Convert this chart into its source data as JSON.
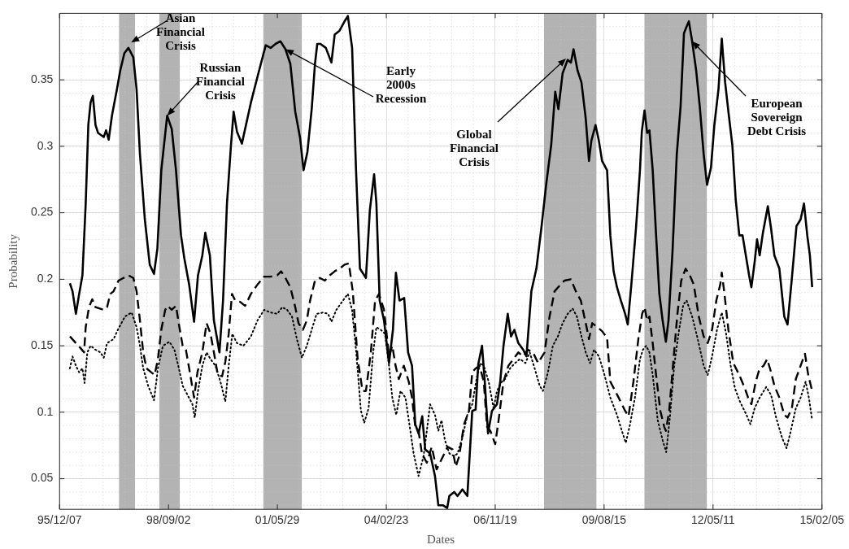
{
  "chart_data": {
    "type": "line",
    "xlabel": "Dates",
    "ylabel": "Probability",
    "grid": true,
    "xlim": [
      "1995-12-07",
      "2015-02-05"
    ],
    "xticks": [
      {
        "value": "1995-12-07",
        "label": "95/12/07"
      },
      {
        "value": "1998-09-02",
        "label": "98/09/02"
      },
      {
        "value": "2001-05-29",
        "label": "01/05/29"
      },
      {
        "value": "2004-02-23",
        "label": "04/02/23"
      },
      {
        "value": "2006-11-19",
        "label": "06/11/19"
      },
      {
        "value": "2009-08-15",
        "label": "09/08/15"
      },
      {
        "value": "2012-05-11",
        "label": "12/05/11"
      },
      {
        "value": "2015-02-05",
        "label": "15/02/05"
      }
    ],
    "ylim": [
      0.027,
      0.4
    ],
    "yticks": [
      0.05,
      0.1,
      0.15,
      0.2,
      0.25,
      0.3,
      0.35
    ],
    "bands": [
      {
        "axis": "x",
        "from": "1997-06-05",
        "to": "1997-10-30",
        "color": "#b3b3b3"
      },
      {
        "axis": "x",
        "from": "1998-06-10",
        "to": "1998-12-15",
        "color": "#b3b3b3"
      },
      {
        "axis": "x",
        "from": "2001-01-20",
        "to": "2002-01-08",
        "color": "#b3b3b3"
      },
      {
        "axis": "x",
        "from": "2008-02-10",
        "to": "2009-06-05",
        "color": "#b3b3b3"
      },
      {
        "axis": "x",
        "from": "2010-08-20",
        "to": "2012-03-15",
        "color": "#b3b3b3"
      }
    ],
    "annotations": [
      {
        "text": "Asian\nFinancial\nCrisis",
        "x": "1997-09-24",
        "y": 0.378
      },
      {
        "text": "Russian\nFinancial\nCrisis",
        "x": "1998-08-21",
        "y": 0.323
      },
      {
        "text": "Early\n2000s\nRecession",
        "x": "2001-08-11",
        "y": 0.373
      },
      {
        "text": "Global\nFinancial\nCrisis",
        "x": "2008-08-30",
        "y": 0.366
      },
      {
        "text": "European\nSovereign\nDebt Crisis",
        "x": "2011-11-01",
        "y": 0.379
      }
    ],
    "series": [
      {
        "line_style": "solid",
        "color": "#000000",
        "x": [
          "1996-03-11",
          "1996-04-04",
          "1996-05-05",
          "1996-06-04",
          "1996-07-04",
          "1996-08-03",
          "1996-08-27",
          "1996-09-17",
          "1996-10-08",
          "1996-11-01",
          "1996-11-25",
          "1997-01-16",
          "1997-02-06",
          "1997-03-02",
          "1997-04-01",
          "1997-05-17",
          "1997-06-16",
          "1997-07-24",
          "1997-08-30",
          "1997-10-14",
          "1997-11-13",
          "1997-12-14",
          "1998-01-28",
          "1998-03-14",
          "1998-04-22",
          "1998-05-23",
          "1998-06-28",
          "1998-08-21",
          "1998-10-02",
          "1998-11-10",
          "1998-12-26",
          "1999-01-25",
          "1999-03-11",
          "1999-04-25",
          "1999-05-31",
          "1999-07-10",
          "1999-08-06",
          "1999-09-17",
          "1999-10-24",
          "1999-12-14",
          "2000-01-16",
          "2000-02-21",
          "2000-03-29",
          "2000-04-22",
          "2000-05-23",
          "2000-07-07",
          "2000-09-28",
          "2000-12-12",
          "2001-02-11",
          "2001-03-28",
          "2001-05-12",
          "2001-06-26",
          "2001-08-11",
          "2001-09-25",
          "2001-11-09",
          "2001-12-24",
          "2002-01-24",
          "2002-03-01",
          "2002-04-09",
          "2002-05-09",
          "2002-05-30",
          "2002-06-29",
          "2002-08-17",
          "2002-10-07",
          "2002-11-06",
          "2002-12-21",
          "2003-02-05",
          "2003-03-07",
          "2003-04-15",
          "2003-05-21",
          "2003-06-26",
          "2003-08-20",
          "2003-09-25",
          "2003-11-03",
          "2003-11-24",
          "2003-12-24",
          "2004-02-02",
          "2004-03-19",
          "2004-04-24",
          "2004-05-21",
          "2004-06-23",
          "2004-08-05",
          "2004-09-10",
          "2004-10-16",
          "2004-11-15",
          "2004-12-15",
          "2005-01-18",
          "2005-02-14",
          "2005-03-31",
          "2005-05-15",
          "2005-06-15",
          "2005-07-29",
          "2005-09-04",
          "2005-09-24",
          "2005-11-07",
          "2005-12-08",
          "2006-01-22",
          "2006-03-08",
          "2006-04-22",
          "2006-05-23",
          "2006-06-16",
          "2006-07-21",
          "2006-08-15",
          "2006-09-14",
          "2006-10-20",
          "2006-12-05",
          "2007-01-04",
          "2007-02-03",
          "2007-03-14",
          "2007-04-13",
          "2007-05-14",
          "2007-06-19",
          "2007-08-03",
          "2007-09-02",
          "2007-10-17",
          "2007-12-02",
          "2008-01-16",
          "2008-03-02",
          "2008-04-16",
          "2008-05-23",
          "2008-06-21",
          "2008-07-30",
          "2008-09-14",
          "2008-10-14",
          "2008-11-07",
          "2008-12-14",
          "2009-01-19",
          "2009-02-27",
          "2009-03-29",
          "2009-04-19",
          "2009-05-28",
          "2009-06-28",
          "2009-07-27",
          "2009-09-11",
          "2009-10-11",
          "2009-11-10",
          "2009-12-11",
          "2010-01-16",
          "2010-02-24",
          "2010-03-20",
          "2010-04-25",
          "2010-06-03",
          "2010-07-10",
          "2010-07-27",
          "2010-08-21",
          "2010-09-14",
          "2010-10-05",
          "2010-11-04",
          "2010-12-05",
          "2011-01-04",
          "2011-02-03",
          "2011-03-05",
          "2011-03-29",
          "2011-05-05",
          "2011-06-13",
          "2011-07-18",
          "2011-08-18",
          "2011-09-11",
          "2011-10-02",
          "2011-11-01",
          "2011-12-08",
          "2012-01-10",
          "2012-02-15",
          "2012-03-17",
          "2012-04-22",
          "2012-05-23",
          "2012-06-30",
          "2012-07-30",
          "2012-08-30",
          "2012-09-29",
          "2012-11-04",
          "2012-12-05",
          "2013-01-07",
          "2013-02-06",
          "2013-03-08",
          "2013-04-07",
          "2013-04-28",
          "2013-05-28",
          "2013-06-19",
          "2013-07-13",
          "2013-08-12",
          "2013-09-26",
          "2013-10-26",
          "2013-11-25",
          "2014-01-10",
          "2014-02-24",
          "2014-03-26",
          "2014-05-05",
          "2014-06-16",
          "2014-07-24",
          "2014-08-24",
          "2014-09-23",
          "2014-10-17",
          "2014-11-07"
        ],
        "values": [
          0.197,
          0.191,
          0.174,
          0.189,
          0.203,
          0.257,
          0.316,
          0.333,
          0.338,
          0.316,
          0.31,
          0.307,
          0.312,
          0.305,
          0.323,
          0.343,
          0.357,
          0.37,
          0.374,
          0.367,
          0.343,
          0.294,
          0.245,
          0.211,
          0.204,
          0.223,
          0.282,
          0.323,
          0.313,
          0.282,
          0.233,
          0.216,
          0.196,
          0.168,
          0.203,
          0.218,
          0.235,
          0.218,
          0.169,
          0.145,
          0.184,
          0.257,
          0.301,
          0.326,
          0.311,
          0.302,
          0.333,
          0.357,
          0.376,
          0.374,
          0.377,
          0.379,
          0.373,
          0.362,
          0.326,
          0.306,
          0.282,
          0.296,
          0.328,
          0.362,
          0.377,
          0.377,
          0.374,
          0.363,
          0.384,
          0.387,
          0.394,
          0.398,
          0.374,
          0.282,
          0.208,
          0.201,
          0.252,
          0.279,
          0.257,
          0.184,
          0.169,
          0.137,
          0.162,
          0.205,
          0.184,
          0.186,
          0.145,
          0.135,
          0.091,
          0.084,
          0.097,
          0.072,
          0.069,
          0.052,
          0.03,
          0.03,
          0.028,
          0.037,
          0.04,
          0.037,
          0.042,
          0.037,
          0.101,
          0.102,
          0.136,
          0.15,
          0.123,
          0.084,
          0.101,
          0.106,
          0.123,
          0.15,
          0.174,
          0.157,
          0.162,
          0.152,
          0.147,
          0.142,
          0.191,
          0.208,
          0.238,
          0.272,
          0.301,
          0.341,
          0.328,
          0.355,
          0.365,
          0.363,
          0.373,
          0.357,
          0.348,
          0.321,
          0.289,
          0.304,
          0.316,
          0.304,
          0.289,
          0.282,
          0.233,
          0.206,
          0.194,
          0.184,
          0.174,
          0.166,
          0.199,
          0.238,
          0.282,
          0.311,
          0.327,
          0.31,
          0.312,
          0.282,
          0.233,
          0.189,
          0.169,
          0.153,
          0.169,
          0.221,
          0.294,
          0.33,
          0.385,
          0.39,
          0.394,
          0.379,
          0.357,
          0.33,
          0.294,
          0.271,
          0.284,
          0.316,
          0.343,
          0.381,
          0.348,
          0.326,
          0.301,
          0.26,
          0.233,
          0.233,
          0.218,
          0.203,
          0.194,
          0.213,
          0.23,
          0.218,
          0.235,
          0.255,
          0.238,
          0.218,
          0.208,
          0.172,
          0.166,
          0.201,
          0.24,
          0.245,
          0.257,
          0.233,
          0.218,
          0.194
        ]
      },
      {
        "line_style": "dashed",
        "color": "#000000",
        "x": [
          "1996-03-11",
          "1996-05-05",
          "1996-06-19",
          "1996-07-19",
          "1996-08-03",
          "1996-09-02",
          "1996-10-02",
          "1996-11-01",
          "1997-01-16",
          "1997-02-15",
          "1997-03-17",
          "1997-04-16",
          "1997-05-31",
          "1997-07-16",
          "1997-08-30",
          "1997-10-14",
          "1997-11-13",
          "1997-12-14",
          "1998-01-13",
          "1998-02-12",
          "1998-03-29",
          "1998-04-28",
          "1998-05-28",
          "1998-06-28",
          "1998-08-03",
          "1998-08-27",
          "1998-10-02",
          "1998-11-10",
          "1998-12-11",
          "1999-01-10",
          "1999-02-09",
          "1999-03-11",
          "1999-04-25",
          "1999-05-26",
          "1999-07-10",
          "1999-08-18",
          "1999-09-23",
          "1999-10-24",
          "1999-11-29",
          "2000-01-07",
          "2000-02-06",
          "2000-03-08",
          "2000-04-07",
          "2000-05-07",
          "2000-06-21",
          "2000-08-06",
          "2000-09-28",
          "2000-11-27",
          "2001-01-27",
          "2001-03-28",
          "2001-05-28",
          "2001-07-02",
          "2001-08-11",
          "2001-09-25",
          "2001-11-09",
          "2001-12-09",
          "2002-01-18",
          "2002-02-23",
          "2002-03-25",
          "2002-05-09",
          "2002-06-23",
          "2002-08-08",
          "2002-09-22",
          "2002-11-06",
          "2002-12-21",
          "2003-02-05",
          "2003-03-16",
          "2003-04-21",
          "2003-06-05",
          "2003-07-20",
          "2003-08-20",
          "2003-10-04",
          "2003-11-12",
          "2003-12-18",
          "2004-02-02",
          "2004-03-19",
          "2004-04-18",
          "2004-05-18",
          "2004-06-17",
          "2004-08-02",
          "2004-09-16",
          "2004-10-16",
          "2004-11-15",
          "2004-12-15",
          "2005-01-15",
          "2005-03-01",
          "2005-04-15",
          "2005-05-30",
          "2005-09-08",
          "2005-10-23",
          "2005-11-22",
          "2005-12-23",
          "2006-02-06",
          "2006-03-23",
          "2006-04-22",
          "2006-05-23",
          "2006-06-28",
          "2006-08-06",
          "2006-09-05",
          "2006-10-05",
          "2006-11-19",
          "2006-12-20",
          "2007-02-03",
          "2007-03-20",
          "2007-05-05",
          "2007-06-19",
          "2007-08-03",
          "2007-09-17",
          "2007-11-01",
          "2007-12-17",
          "2008-02-15",
          "2008-04-01",
          "2008-05-17",
          "2008-06-30",
          "2008-08-15",
          "2008-10-14",
          "2008-11-28",
          "2009-01-13",
          "2009-02-27",
          "2009-03-29",
          "2009-04-28",
          "2009-06-13",
          "2009-07-27",
          "2009-09-11",
          "2009-10-11",
          "2009-12-26",
          "2010-02-24",
          "2010-03-27",
          "2010-05-11",
          "2010-06-25",
          "2010-07-30",
          "2010-08-21",
          "2010-09-14",
          "2010-10-05",
          "2010-11-04",
          "2010-12-05",
          "2011-01-13",
          "2011-02-18",
          "2011-03-05",
          "2011-04-04",
          "2011-05-14",
          "2011-06-19",
          "2011-07-24",
          "2011-09-02",
          "2011-10-11",
          "2011-11-16",
          "2012-01-01",
          "2012-02-15",
          "2012-03-23",
          "2012-05-02",
          "2012-06-10",
          "2012-07-16",
          "2012-07-30",
          "2012-08-21",
          "2012-09-29",
          "2012-11-13",
          "2013-01-07",
          "2013-02-27",
          "2013-03-29",
          "2013-04-28",
          "2013-06-07",
          "2013-07-13",
          "2013-08-18",
          "2013-09-20",
          "2013-10-26",
          "2013-11-25",
          "2014-01-10",
          "2014-02-24",
          "2014-03-26",
          "2014-05-05",
          "2014-06-10",
          "2014-07-24",
          "2014-09-02",
          "2014-10-02",
          "2014-11-07"
        ],
        "values": [
          0.157,
          0.152,
          0.148,
          0.145,
          0.164,
          0.179,
          0.185,
          0.179,
          0.177,
          0.179,
          0.189,
          0.191,
          0.199,
          0.201,
          0.203,
          0.201,
          0.191,
          0.169,
          0.145,
          0.133,
          0.13,
          0.128,
          0.14,
          0.162,
          0.177,
          0.18,
          0.177,
          0.18,
          0.164,
          0.15,
          0.147,
          0.133,
          0.111,
          0.13,
          0.145,
          0.167,
          0.159,
          0.145,
          0.128,
          0.127,
          0.138,
          0.159,
          0.189,
          0.184,
          0.183,
          0.18,
          0.189,
          0.196,
          0.202,
          0.202,
          0.203,
          0.206,
          0.201,
          0.194,
          0.179,
          0.167,
          0.162,
          0.169,
          0.184,
          0.199,
          0.201,
          0.199,
          0.203,
          0.206,
          0.208,
          0.211,
          0.212,
          0.191,
          0.14,
          0.116,
          0.116,
          0.145,
          0.184,
          0.189,
          0.177,
          0.142,
          0.15,
          0.135,
          0.125,
          0.135,
          0.123,
          0.111,
          0.089,
          0.086,
          0.069,
          0.062,
          0.074,
          0.057,
          0.074,
          0.072,
          0.059,
          0.067,
          0.091,
          0.101,
          0.13,
          0.133,
          0.135,
          0.123,
          0.089,
          0.086,
          0.076,
          0.094,
          0.123,
          0.135,
          0.14,
          0.145,
          0.142,
          0.147,
          0.145,
          0.137,
          0.145,
          0.172,
          0.191,
          0.195,
          0.199,
          0.2,
          0.191,
          0.184,
          0.167,
          0.155,
          0.167,
          0.164,
          0.161,
          0.156,
          0.123,
          0.111,
          0.101,
          0.097,
          0.123,
          0.155,
          0.174,
          0.179,
          0.169,
          0.172,
          0.152,
          0.128,
          0.101,
          0.089,
          0.086,
          0.101,
          0.14,
          0.174,
          0.199,
          0.208,
          0.203,
          0.196,
          0.172,
          0.157,
          0.152,
          0.162,
          0.184,
          0.196,
          0.205,
          0.191,
          0.162,
          0.137,
          0.128,
          0.118,
          0.111,
          0.106,
          0.123,
          0.133,
          0.135,
          0.14,
          0.13,
          0.12,
          0.111,
          0.098,
          0.096,
          0.103,
          0.125,
          0.135,
          0.144,
          0.128,
          0.116
        ]
      },
      {
        "line_style": "dotted",
        "color": "#000000",
        "x": [
          "1996-03-11",
          "1996-04-04",
          "1996-05-05",
          "1996-06-04",
          "1996-07-04",
          "1996-07-24",
          "1996-08-18",
          "1996-09-17",
          "1996-11-01",
          "1996-12-17",
          "1997-01-16",
          "1997-02-15",
          "1997-04-16",
          "1997-05-31",
          "1997-07-30",
          "1997-09-29",
          "1997-11-13",
          "1997-12-14",
          "1998-01-13",
          "1998-02-27",
          "1998-04-22",
          "1998-05-28",
          "1998-07-13",
          "1998-09-11",
          "1998-10-26",
          "1998-12-01",
          "1999-01-10",
          "1999-02-24",
          "1999-04-10",
          "1999-05-01",
          "1999-05-31",
          "1999-07-10",
          "1999-08-18",
          "1999-09-23",
          "1999-11-07",
          "1999-12-23",
          "2000-02-06",
          "2000-03-08",
          "2000-04-10",
          "2000-05-23",
          "2000-07-21",
          "2000-09-28",
          "2000-11-27",
          "2001-01-27",
          "2001-03-28",
          "2001-05-28",
          "2001-07-12",
          "2001-08-26",
          "2001-10-10",
          "2001-11-24",
          "2002-01-09",
          "2002-02-23",
          "2002-04-09",
          "2002-05-24",
          "2002-07-23",
          "2002-09-07",
          "2002-10-07",
          "2002-11-21",
          "2003-01-21",
          "2003-03-07",
          "2003-04-15",
          "2003-05-21",
          "2003-07-05",
          "2003-08-05",
          "2003-09-13",
          "2003-10-25",
          "2003-11-24",
          "2004-01-03",
          "2004-02-11",
          "2004-03-19",
          "2004-04-18",
          "2004-05-24",
          "2004-07-02",
          "2004-08-17",
          "2004-10-01",
          "2004-10-31",
          "2004-12-15",
          "2005-01-30",
          "2005-03-01",
          "2005-03-31",
          "2005-05-15",
          "2005-06-15",
          "2005-07-14",
          "2005-08-14",
          "2005-09-24",
          "2005-11-07",
          "2005-12-08",
          "2006-01-22",
          "2006-03-08",
          "2006-04-22",
          "2006-06-07",
          "2006-07-07",
          "2006-08-06",
          "2006-09-20",
          "2006-11-04",
          "2006-12-05",
          "2007-01-19",
          "2007-02-18",
          "2007-04-04",
          "2007-05-20",
          "2007-07-04",
          "2007-08-24",
          "2007-10-02",
          "2007-11-16",
          "2008-01-01",
          "2008-01-31",
          "2008-03-17",
          "2008-05-01",
          "2008-06-16",
          "2008-07-30",
          "2008-09-14",
          "2008-10-29",
          "2008-12-08",
          "2009-01-13",
          "2009-02-27",
          "2009-04-07",
          "2009-05-14",
          "2009-06-28",
          "2009-08-12",
          "2009-10-11",
          "2009-12-11",
          "2010-01-25",
          "2010-03-02",
          "2010-04-10",
          "2010-05-25",
          "2010-07-10",
          "2010-08-06",
          "2010-09-05",
          "2010-10-05",
          "2010-11-04",
          "2010-12-20",
          "2011-02-03",
          "2011-03-08",
          "2011-04-13",
          "2011-05-20",
          "2011-07-04",
          "2011-08-12",
          "2011-09-11",
          "2011-11-01",
          "2011-12-17",
          "2012-02-15",
          "2012-03-23",
          "2012-05-02",
          "2012-06-16",
          "2012-07-30",
          "2012-09-08",
          "2012-10-20",
          "2012-11-28",
          "2013-01-13",
          "2013-03-14",
          "2013-04-19",
          "2013-05-28",
          "2013-07-13",
          "2013-09-11",
          "2013-10-26",
          "2013-12-11",
          "2014-02-03",
          "2014-03-17",
          "2014-04-25",
          "2014-06-10",
          "2014-07-24",
          "2014-09-08",
          "2014-10-08",
          "2014-11-07"
        ],
        "values": [
          0.133,
          0.142,
          0.135,
          0.13,
          0.133,
          0.122,
          0.145,
          0.15,
          0.147,
          0.145,
          0.141,
          0.152,
          0.155,
          0.163,
          0.172,
          0.175,
          0.164,
          0.15,
          0.133,
          0.12,
          0.109,
          0.133,
          0.15,
          0.153,
          0.147,
          0.135,
          0.12,
          0.113,
          0.106,
          0.096,
          0.116,
          0.135,
          0.145,
          0.14,
          0.135,
          0.123,
          0.108,
          0.135,
          0.159,
          0.152,
          0.15,
          0.157,
          0.169,
          0.177,
          0.175,
          0.174,
          0.179,
          0.177,
          0.172,
          0.155,
          0.141,
          0.15,
          0.162,
          0.174,
          0.175,
          0.174,
          0.168,
          0.177,
          0.184,
          0.189,
          0.177,
          0.147,
          0.101,
          0.092,
          0.103,
          0.145,
          0.164,
          0.162,
          0.159,
          0.135,
          0.111,
          0.098,
          0.116,
          0.111,
          0.086,
          0.069,
          0.052,
          0.067,
          0.086,
          0.106,
          0.098,
          0.086,
          0.094,
          0.079,
          0.069,
          0.067,
          0.069,
          0.081,
          0.098,
          0.106,
          0.128,
          0.137,
          0.135,
          0.123,
          0.103,
          0.116,
          0.123,
          0.125,
          0.133,
          0.137,
          0.14,
          0.137,
          0.145,
          0.133,
          0.12,
          0.116,
          0.13,
          0.15,
          0.157,
          0.167,
          0.174,
          0.178,
          0.172,
          0.159,
          0.145,
          0.137,
          0.147,
          0.142,
          0.13,
          0.111,
          0.098,
          0.086,
          0.077,
          0.091,
          0.111,
          0.14,
          0.147,
          0.15,
          0.145,
          0.128,
          0.094,
          0.079,
          0.07,
          0.098,
          0.135,
          0.162,
          0.181,
          0.184,
          0.172,
          0.157,
          0.135,
          0.128,
          0.142,
          0.162,
          0.175,
          0.159,
          0.135,
          0.118,
          0.108,
          0.098,
          0.091,
          0.103,
          0.111,
          0.119,
          0.113,
          0.096,
          0.081,
          0.073,
          0.086,
          0.103,
          0.111,
          0.123,
          0.111,
          0.094
        ]
      }
    ]
  }
}
